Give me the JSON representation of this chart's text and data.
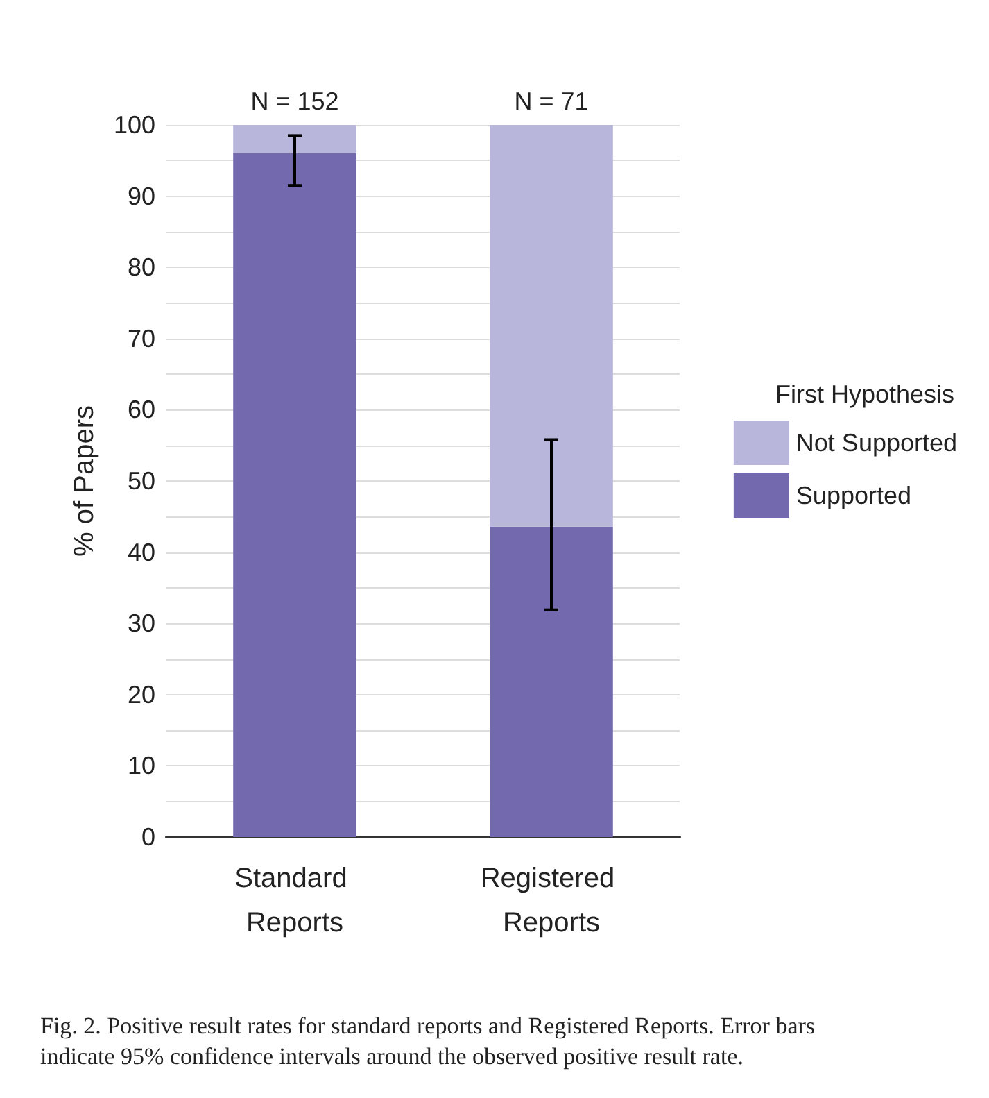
{
  "chart_data": {
    "type": "bar",
    "stacked": true,
    "ylabel": "% of Papers",
    "legend_title": "First Hypothesis",
    "legend": "right",
    "grid": "y",
    "categories": [
      "Standard Reports",
      "Registered Reports"
    ],
    "series": [
      {
        "name": "Supported",
        "color": "#7369ae",
        "values": [
          96.0,
          43.6
        ],
        "errors": [
          [
            91.5,
            98.5
          ],
          [
            31.9,
            55.8
          ]
        ]
      },
      {
        "name": "Not Supported",
        "color": "#b8b6da",
        "values": [
          4.0,
          56.4
        ]
      }
    ],
    "ylim": [
      0,
      100
    ],
    "yticks": [
      0,
      {
        "value": 5,
        "label": null
      },
      10,
      {
        "value": 15,
        "label": null
      },
      20,
      {
        "value": 25,
        "label": null
      },
      30,
      {
        "value": 35,
        "label": null
      },
      40,
      {
        "value": 45,
        "label": null
      },
      50,
      {
        "value": 55,
        "label": null
      },
      60,
      {
        "value": 65,
        "label": null
      },
      70,
      {
        "value": 75,
        "label": null
      },
      80,
      {
        "value": 85,
        "label": null
      },
      90,
      {
        "value": 95,
        "label": null
      },
      100
    ],
    "annotations": [
      {
        "text": "N = 152",
        "x": "Standard Reports",
        "y": 100
      },
      {
        "text": "N = 71",
        "x": "Registered Reports",
        "y": 100
      },
      "Fig. 2. Positive result rates for standard reports and Registered Reports. Error bars indicate 95% confidence intervals around the observed positive result rate."
    ]
  }
}
